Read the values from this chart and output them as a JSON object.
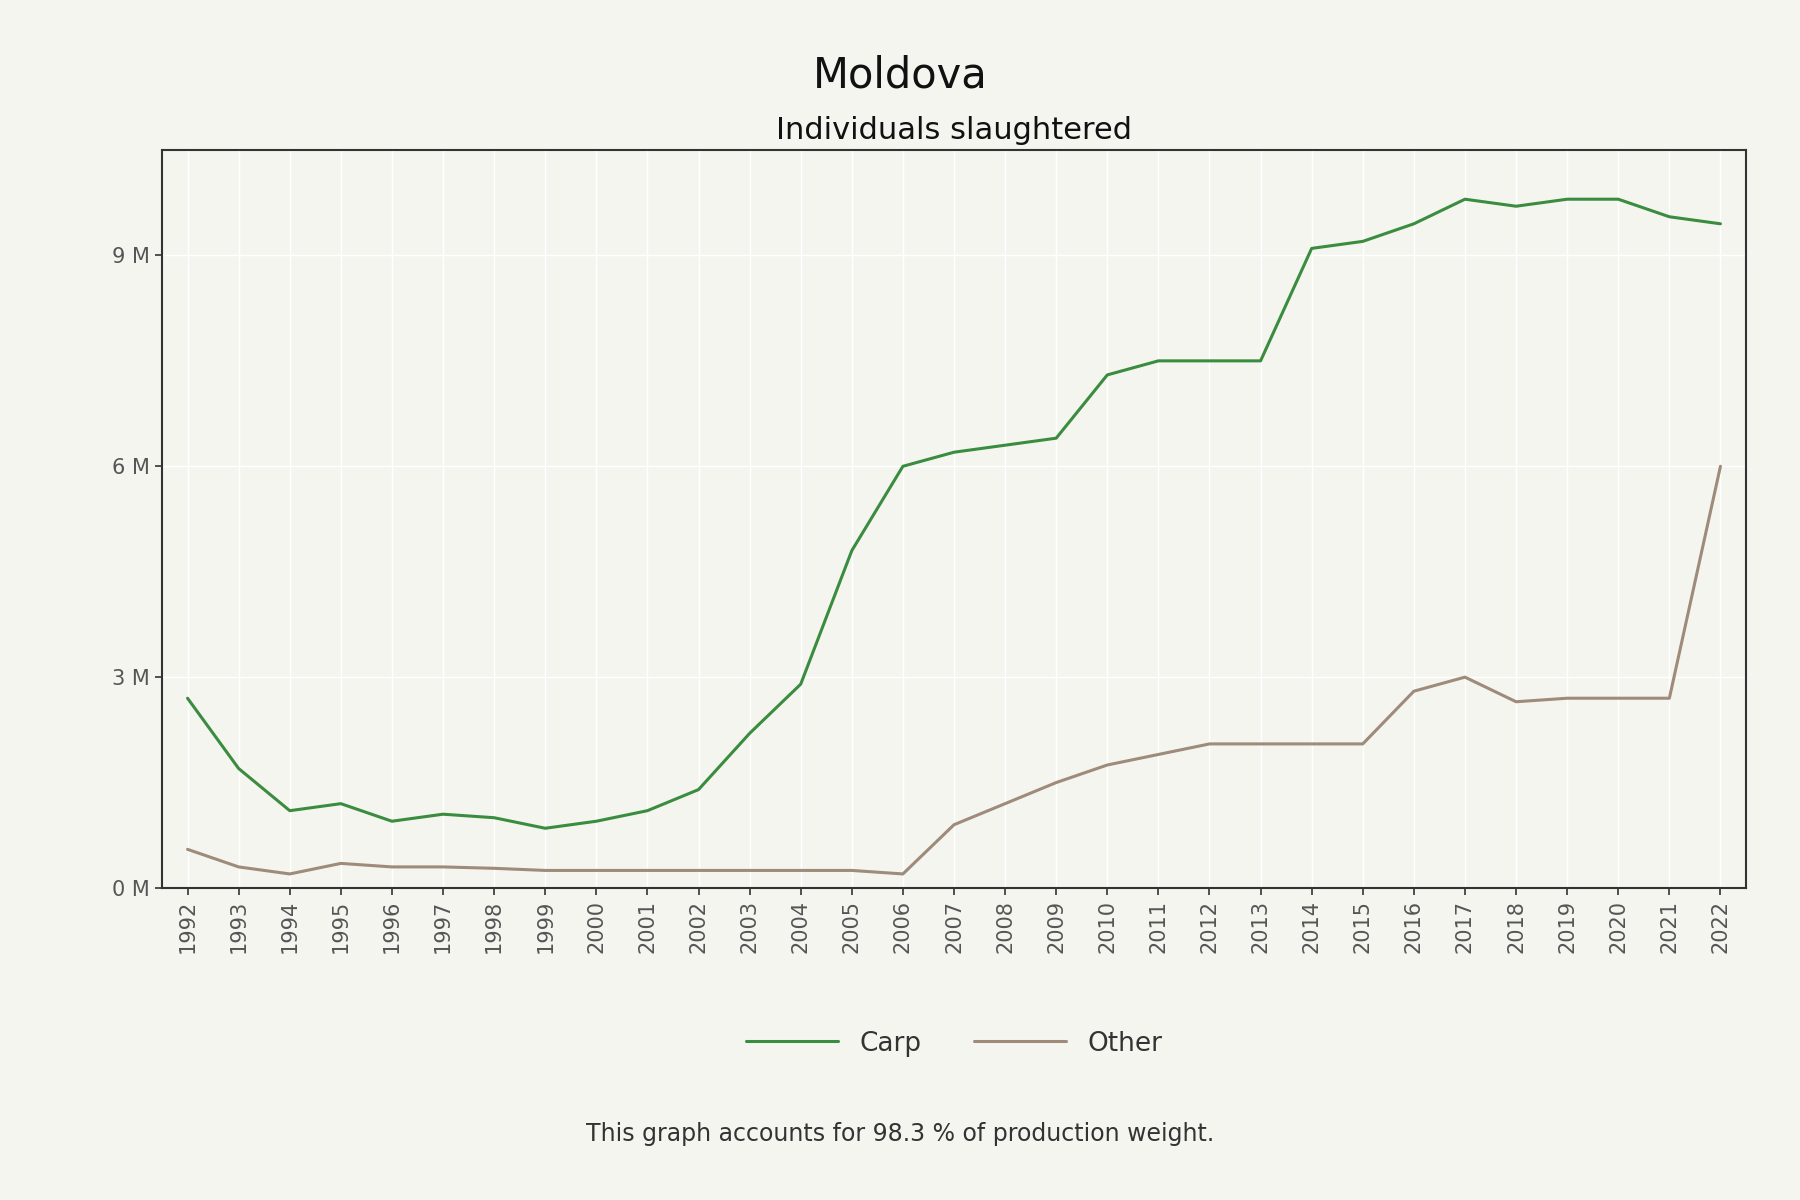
{
  "title": "Moldova",
  "subtitle": "Individuals slaughtered",
  "footnote": "This graph accounts for 98.3 % of production weight.",
  "years": [
    1992,
    1993,
    1994,
    1995,
    1996,
    1997,
    1998,
    1999,
    2000,
    2001,
    2002,
    2003,
    2004,
    2005,
    2006,
    2007,
    2008,
    2009,
    2010,
    2011,
    2012,
    2013,
    2014,
    2015,
    2016,
    2017,
    2018,
    2019,
    2020,
    2021,
    2022
  ],
  "carp": [
    2700000,
    1700000,
    1100000,
    1200000,
    950000,
    1050000,
    1000000,
    850000,
    950000,
    1100000,
    1400000,
    2200000,
    2900000,
    4800000,
    6000000,
    6200000,
    6300000,
    6400000,
    7300000,
    7500000,
    7500000,
    7500000,
    9100000,
    9200000,
    9450000,
    9800000,
    9700000,
    9800000,
    9800000,
    9550000,
    9450000
  ],
  "other": [
    550000,
    300000,
    200000,
    350000,
    300000,
    300000,
    280000,
    250000,
    250000,
    250000,
    250000,
    250000,
    250000,
    250000,
    200000,
    900000,
    1200000,
    1500000,
    1750000,
    1900000,
    2050000,
    2050000,
    2050000,
    2050000,
    2800000,
    3000000,
    2650000,
    2700000,
    2700000,
    2700000,
    6000000
  ],
  "carp_color": "#3a8c3f",
  "other_color": "#9e8b7a",
  "background_color": "#f5f5f0",
  "plot_bg_color": "#f5f5f0",
  "ylim": [
    0,
    10500000
  ],
  "yticks": [
    0,
    3000000,
    6000000,
    9000000
  ],
  "ytick_labels": [
    "0 M",
    "3 M",
    "6 M",
    "9 M"
  ],
  "title_fontsize": 30,
  "subtitle_fontsize": 22,
  "footnote_fontsize": 17,
  "legend_fontsize": 19,
  "tick_fontsize": 15
}
